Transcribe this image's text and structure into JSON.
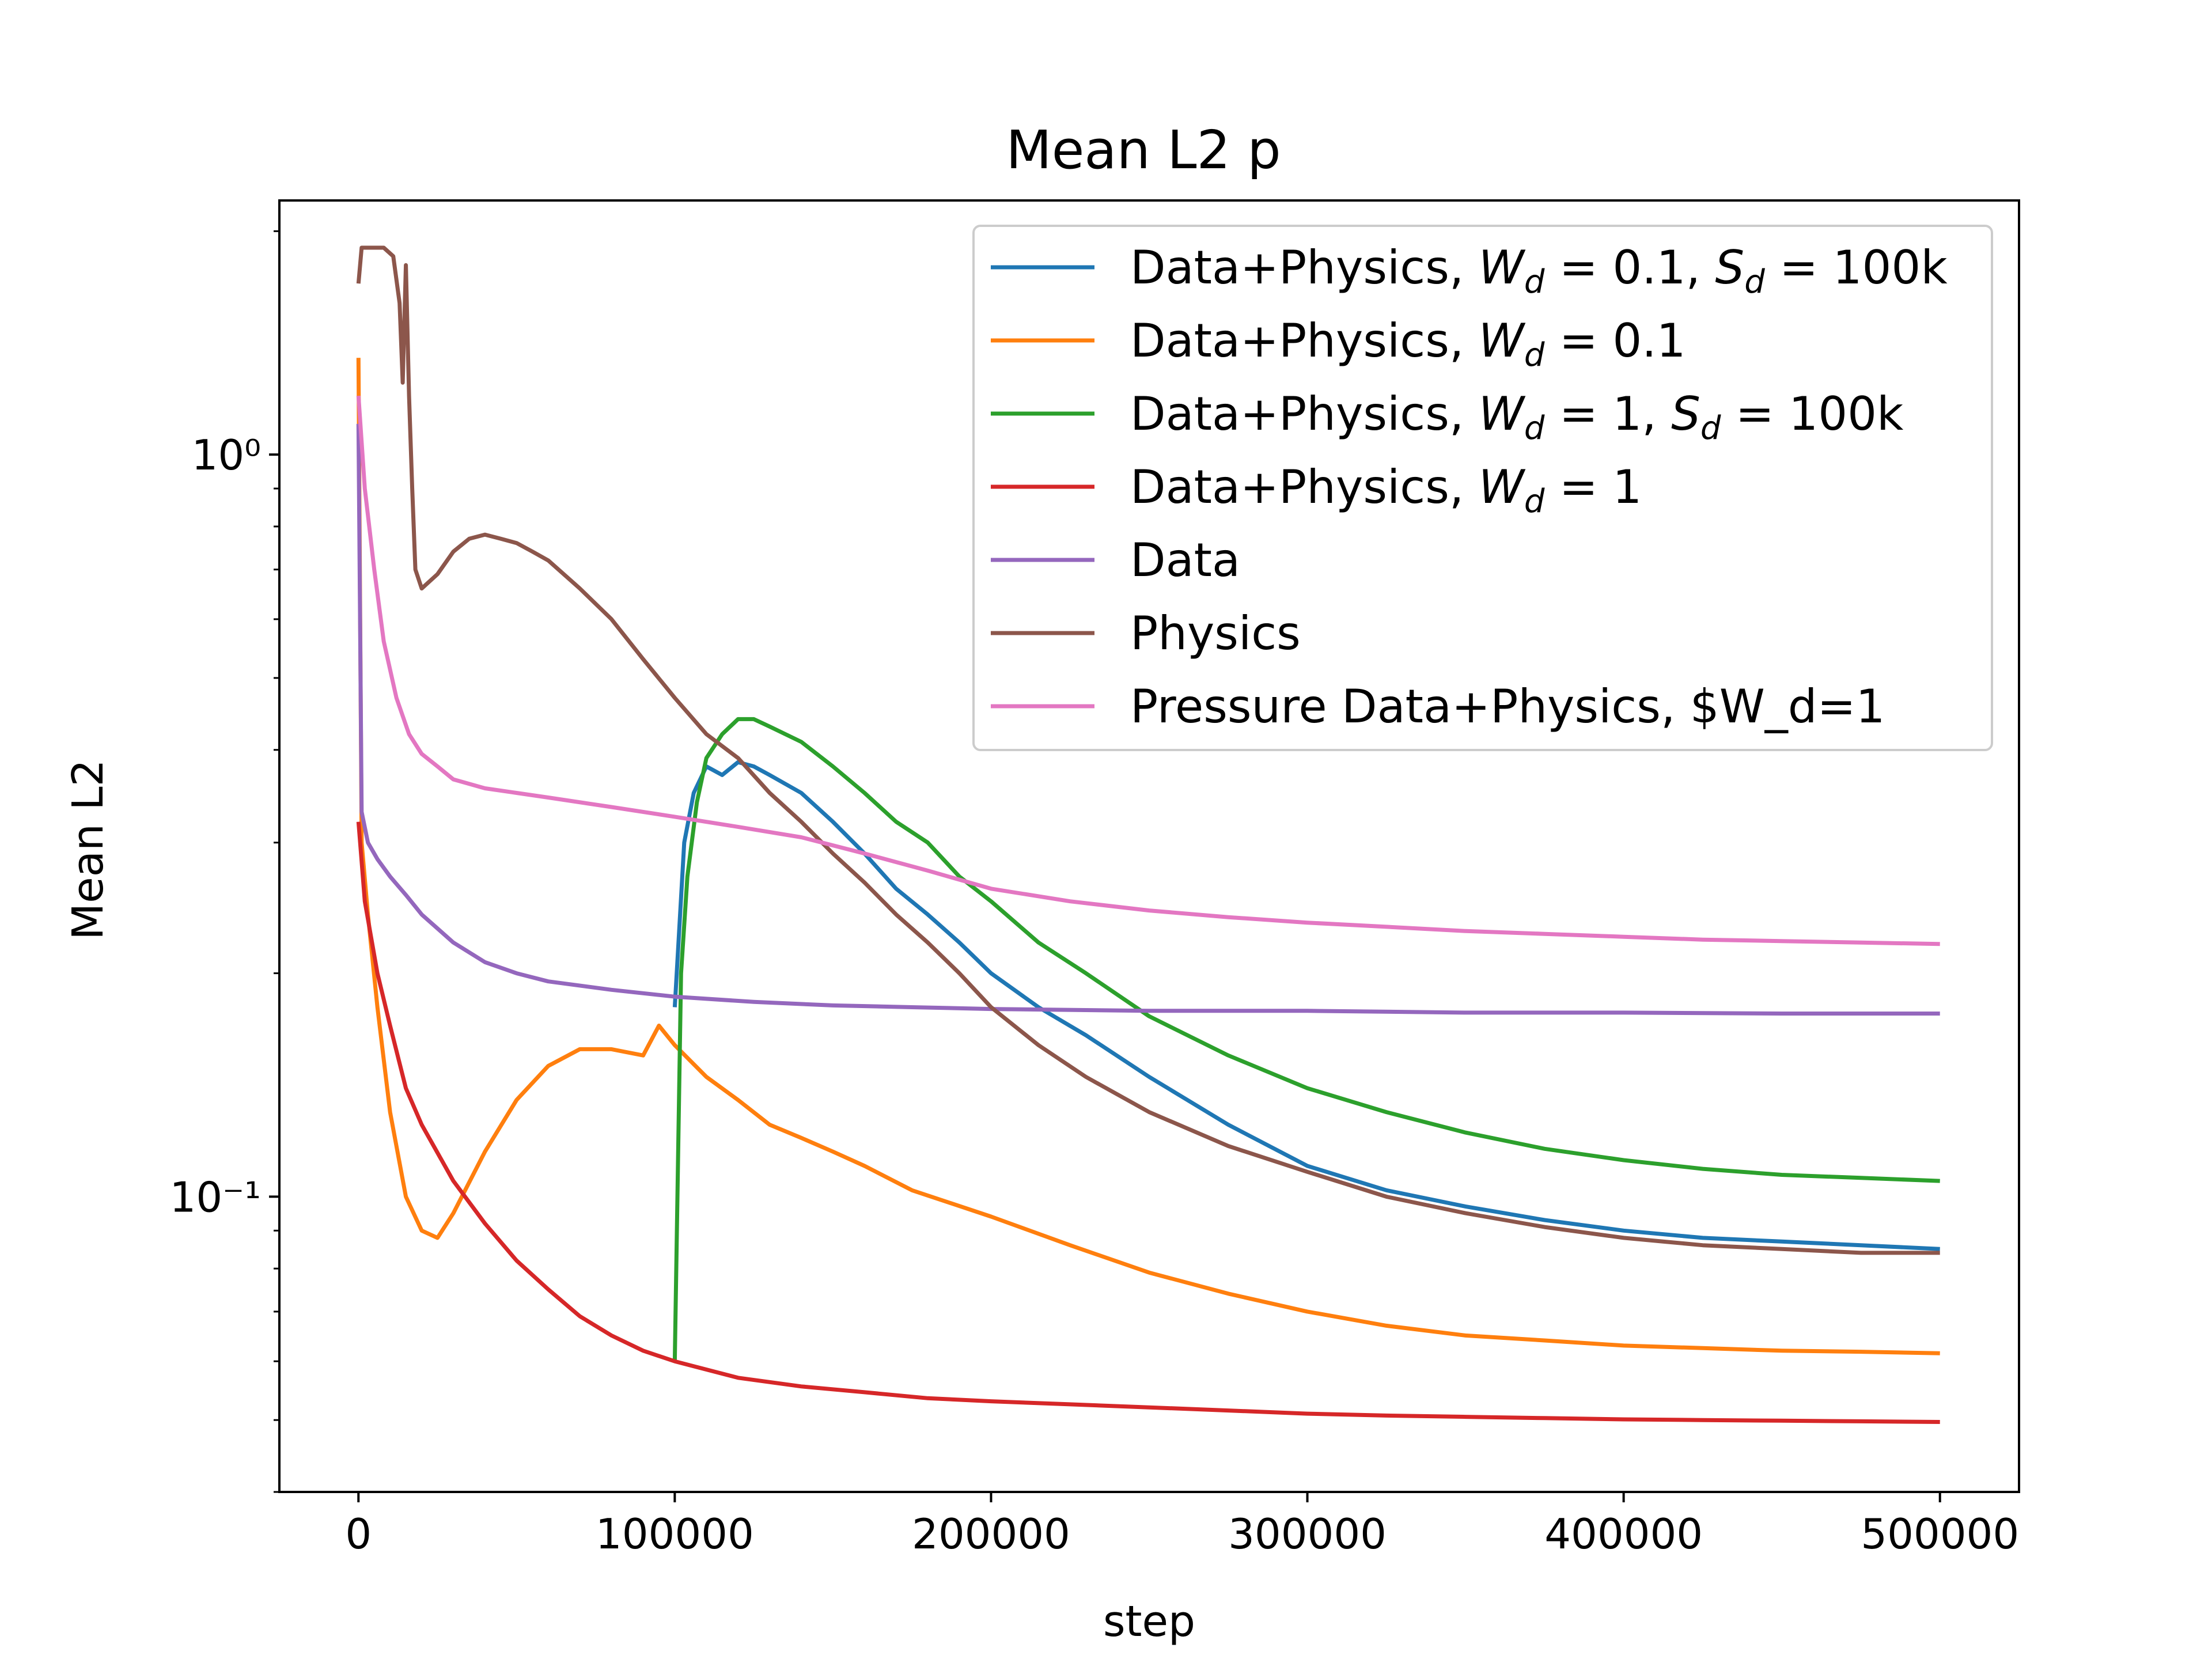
{
  "chart_data": {
    "type": "line",
    "title": "Mean L2 p",
    "xlabel": "step",
    "ylabel": "Mean L2",
    "xlim": [
      -25000,
      525000
    ],
    "ylim": [
      0.04,
      2.2
    ],
    "yscale": "log",
    "xticks": [
      0,
      100000,
      200000,
      300000,
      400000,
      500000
    ],
    "xtick_labels": [
      "0",
      "100000",
      "200000",
      "300000",
      "400000",
      "500000"
    ],
    "yticks": [
      1,
      0.1
    ],
    "ytick_labels": [
      "10⁰",
      "10⁻¹"
    ],
    "grid": false,
    "legend_position": "top-right",
    "series": [
      {
        "name": "Data+Physics, W_d = 0.1, S_d = 100k",
        "color": "#1f77b4",
        "x": [
          100000,
          103000,
          106000,
          110000,
          115000,
          120000,
          125000,
          130000,
          140000,
          150000,
          160000,
          170000,
          180000,
          190000,
          200000,
          215000,
          230000,
          250000,
          275000,
          300000,
          325000,
          350000,
          375000,
          400000,
          425000,
          450000,
          475000,
          500000
        ],
        "y": [
          0.18,
          0.3,
          0.35,
          0.38,
          0.37,
          0.385,
          0.38,
          0.37,
          0.35,
          0.32,
          0.29,
          0.26,
          0.24,
          0.22,
          0.2,
          0.18,
          0.165,
          0.145,
          0.125,
          0.11,
          0.102,
          0.097,
          0.093,
          0.09,
          0.088,
          0.087,
          0.086,
          0.085
        ]
      },
      {
        "name": "Data+Physics, W_d = 0.1",
        "color": "#ff7f0e",
        "x": [
          0,
          1000,
          3000,
          6000,
          10000,
          15000,
          20000,
          25000,
          30000,
          40000,
          50000,
          60000,
          70000,
          80000,
          90000,
          95000,
          100000,
          110000,
          120000,
          130000,
          140000,
          150000,
          160000,
          175000,
          200000,
          225000,
          250000,
          275000,
          300000,
          325000,
          350000,
          375000,
          400000,
          425000,
          450000,
          475000,
          500000
        ],
        "y": [
          1.35,
          0.3,
          0.24,
          0.18,
          0.13,
          0.1,
          0.09,
          0.088,
          0.095,
          0.115,
          0.135,
          0.15,
          0.158,
          0.158,
          0.155,
          0.17,
          0.16,
          0.145,
          0.135,
          0.125,
          0.12,
          0.115,
          0.11,
          0.102,
          0.094,
          0.086,
          0.079,
          0.074,
          0.07,
          0.067,
          0.065,
          0.064,
          0.063,
          0.0625,
          0.062,
          0.0618,
          0.0615
        ]
      },
      {
        "name": "Data+Physics, W_d = 1, S_d = 100k",
        "color": "#2ca02c",
        "x": [
          100000,
          102000,
          104000,
          107000,
          110000,
          115000,
          120000,
          125000,
          130000,
          140000,
          150000,
          160000,
          170000,
          180000,
          190000,
          200000,
          215000,
          230000,
          250000,
          275000,
          300000,
          325000,
          350000,
          375000,
          400000,
          425000,
          450000,
          475000,
          500000
        ],
        "y": [
          0.06,
          0.2,
          0.27,
          0.34,
          0.39,
          0.42,
          0.44,
          0.44,
          0.43,
          0.41,
          0.38,
          0.35,
          0.32,
          0.3,
          0.27,
          0.25,
          0.22,
          0.2,
          0.175,
          0.155,
          0.14,
          0.13,
          0.122,
          0.116,
          0.112,
          0.109,
          0.107,
          0.106,
          0.105
        ]
      },
      {
        "name": "Data+Physics, W_d = 1",
        "color": "#d62728",
        "x": [
          0,
          2000,
          6000,
          10000,
          15000,
          20000,
          30000,
          40000,
          50000,
          60000,
          70000,
          80000,
          90000,
          100000,
          120000,
          140000,
          160000,
          180000,
          200000,
          225000,
          250000,
          275000,
          300000,
          325000,
          350000,
          375000,
          400000,
          425000,
          450000,
          475000,
          500000
        ],
        "y": [
          0.32,
          0.25,
          0.2,
          0.17,
          0.14,
          0.125,
          0.105,
          0.092,
          0.082,
          0.075,
          0.069,
          0.065,
          0.062,
          0.06,
          0.057,
          0.0555,
          0.0545,
          0.0535,
          0.053,
          0.0525,
          0.052,
          0.0515,
          0.051,
          0.0507,
          0.0505,
          0.0503,
          0.0501,
          0.05,
          0.0499,
          0.0498,
          0.0497
        ]
      },
      {
        "name": "Data",
        "color": "#9467bd",
        "x": [
          0,
          1000,
          3000,
          6000,
          10000,
          15000,
          20000,
          30000,
          40000,
          50000,
          60000,
          80000,
          100000,
          125000,
          150000,
          175000,
          200000,
          250000,
          300000,
          350000,
          400000,
          450000,
          500000
        ],
        "y": [
          1.1,
          0.33,
          0.3,
          0.285,
          0.27,
          0.255,
          0.24,
          0.22,
          0.207,
          0.2,
          0.195,
          0.19,
          0.186,
          0.183,
          0.181,
          0.18,
          0.179,
          0.178,
          0.178,
          0.177,
          0.177,
          0.1765,
          0.1765
        ]
      },
      {
        "name": "Physics",
        "color": "#8c564b",
        "x": [
          0,
          1000,
          4000,
          8000,
          11000,
          13000,
          14000,
          15000,
          16000,
          17000,
          18000,
          20000,
          25000,
          30000,
          35000,
          40000,
          45000,
          50000,
          55000,
          60000,
          70000,
          80000,
          90000,
          100000,
          110000,
          120000,
          130000,
          140000,
          150000,
          160000,
          170000,
          180000,
          190000,
          200000,
          215000,
          230000,
          250000,
          275000,
          300000,
          325000,
          350000,
          375000,
          400000,
          425000,
          450000,
          475000,
          500000
        ],
        "y": [
          1.7,
          1.9,
          1.9,
          1.9,
          1.85,
          1.6,
          1.25,
          1.8,
          1.2,
          0.9,
          0.7,
          0.66,
          0.69,
          0.74,
          0.77,
          0.78,
          0.77,
          0.76,
          0.74,
          0.72,
          0.66,
          0.6,
          0.53,
          0.47,
          0.42,
          0.39,
          0.35,
          0.32,
          0.29,
          0.265,
          0.24,
          0.22,
          0.2,
          0.18,
          0.16,
          0.145,
          0.13,
          0.117,
          0.108,
          0.1,
          0.095,
          0.091,
          0.088,
          0.086,
          0.085,
          0.084,
          0.084
        ]
      },
      {
        "name": "Pressure Data+Physics, $W_d=1",
        "color": "#e377c2",
        "x": [
          0,
          2000,
          5000,
          8000,
          12000,
          16000,
          20000,
          25000,
          30000,
          40000,
          50000,
          60000,
          80000,
          100000,
          120000,
          140000,
          160000,
          180000,
          200000,
          225000,
          250000,
          275000,
          300000,
          325000,
          350000,
          375000,
          400000,
          425000,
          450000,
          475000,
          500000
        ],
        "y": [
          1.2,
          0.9,
          0.7,
          0.56,
          0.47,
          0.42,
          0.395,
          0.38,
          0.365,
          0.355,
          0.35,
          0.345,
          0.335,
          0.325,
          0.315,
          0.305,
          0.29,
          0.275,
          0.26,
          0.25,
          0.243,
          0.238,
          0.234,
          0.231,
          0.228,
          0.226,
          0.224,
          0.222,
          0.221,
          0.22,
          0.219
        ]
      }
    ]
  },
  "legend": {
    "entries": [
      {
        "pre": "Data+Physics, ",
        "parts": [
          [
            "W",
            "d",
            " = 0.1, "
          ],
          [
            "S",
            "d",
            " = 100k"
          ]
        ]
      },
      {
        "pre": "Data+Physics, ",
        "parts": [
          [
            "W",
            "d",
            " = 0.1"
          ]
        ]
      },
      {
        "pre": "Data+Physics, ",
        "parts": [
          [
            "W",
            "d",
            " = 1, "
          ],
          [
            "S",
            "d",
            " = 100k"
          ]
        ]
      },
      {
        "pre": "Data+Physics, ",
        "parts": [
          [
            "W",
            "d",
            " = 1"
          ]
        ]
      },
      {
        "pre": "Data",
        "parts": []
      },
      {
        "pre": "Physics",
        "parts": []
      },
      {
        "pre": "Pressure Data+Physics, $W_d=1",
        "parts": []
      }
    ]
  }
}
